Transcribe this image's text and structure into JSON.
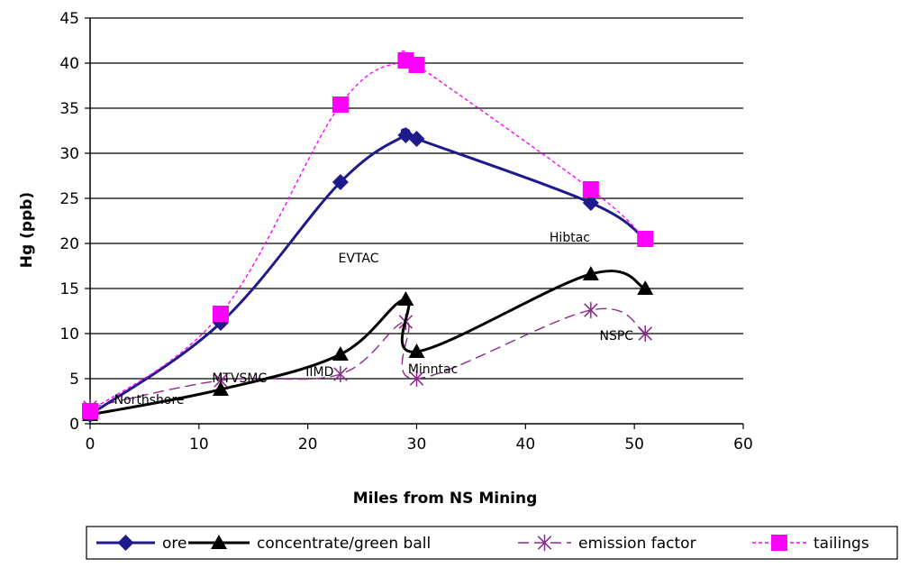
{
  "chart_data": {
    "type": "line",
    "title": "",
    "xlabel": "Miles from NS Mining",
    "ylabel": "Hg (ppb)",
    "xlim": [
      0,
      60
    ],
    "ylim": [
      0,
      45
    ],
    "x_ticks": [
      "0",
      "10",
      "20",
      "30",
      "40",
      "50",
      "60"
    ],
    "y_ticks": [
      "0",
      "5",
      "10",
      "15",
      "20",
      "25",
      "30",
      "35",
      "40",
      "45"
    ],
    "grid": "horizontal",
    "legend_position": "bottom",
    "series": [
      {
        "name": "ore",
        "color": "#1f1a8c",
        "marker": "diamond",
        "line": "solid",
        "points": [
          [
            0,
            1
          ],
          [
            12,
            11.2
          ],
          [
            23,
            26.8
          ],
          [
            29,
            32
          ],
          [
            30,
            31.6
          ],
          [
            46,
            24.5
          ],
          [
            51,
            20.5
          ]
        ]
      },
      {
        "name": "concentrate/green ball",
        "color": "#000000",
        "marker": "triangle",
        "line": "solid",
        "points": [
          [
            0,
            1
          ],
          [
            12,
            3.8
          ],
          [
            23,
            7.7
          ],
          [
            29,
            13.8
          ],
          [
            30,
            8
          ],
          [
            46,
            16.6
          ],
          [
            51,
            15
          ]
        ]
      },
      {
        "name": "emission factor",
        "color": "#8a2a8a",
        "marker": "star",
        "line": "dash",
        "points": [
          [
            0,
            1.8
          ],
          [
            12,
            4.8
          ],
          [
            23,
            5.5
          ],
          [
            29,
            11.3
          ],
          [
            30,
            5
          ],
          [
            46,
            12.6
          ],
          [
            51,
            10
          ]
        ]
      },
      {
        "name": "tailings",
        "color": "#ff00ff",
        "marker": "square",
        "line": "dot",
        "points": [
          [
            0,
            1.4
          ],
          [
            12,
            12.2
          ],
          [
            23,
            35.4
          ],
          [
            29,
            40.3
          ],
          [
            30,
            39.8
          ],
          [
            46,
            26
          ],
          [
            51,
            20.5
          ]
        ]
      }
    ],
    "annotations": [
      {
        "text": "Northshore",
        "x": 2.2,
        "y": 2.2
      },
      {
        "text": "MTVSMC",
        "x": 11.2,
        "y": 4.6
      },
      {
        "text": "IIMD",
        "x": 19.8,
        "y": 5.3
      },
      {
        "text": "EVTAC",
        "x": 22.8,
        "y": 17.9
      },
      {
        "text": "Minntac",
        "x": 29.2,
        "y": 5.6
      },
      {
        "text": "Hibtac",
        "x": 42.2,
        "y": 20.2
      },
      {
        "text": "NSPC",
        "x": 46.8,
        "y": 9.3
      }
    ]
  }
}
